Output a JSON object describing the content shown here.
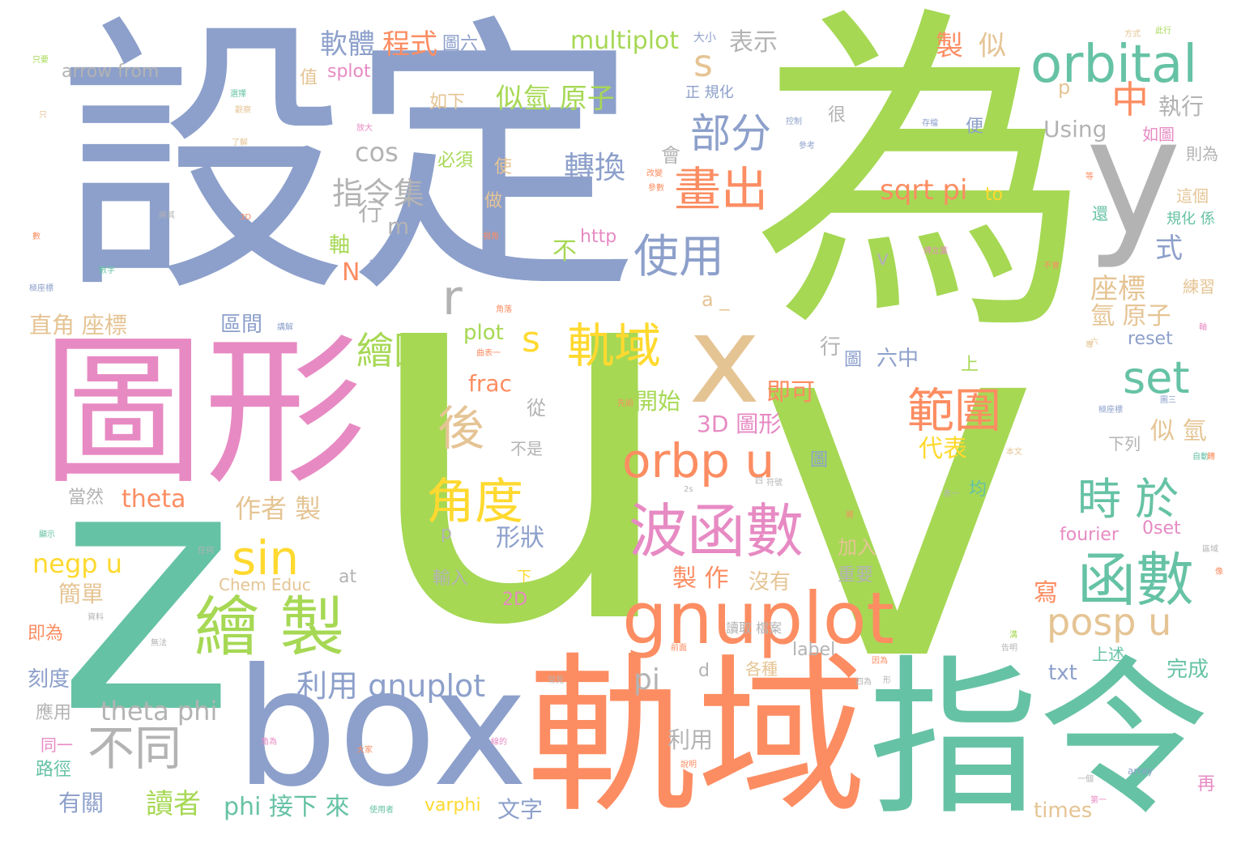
{
  "palette": {
    "green": "#a6d854",
    "blue": "#8da0cb",
    "pink": "#e78ac3",
    "teal": "#66c2a5",
    "orange": "#fc8d62",
    "yellow": "#ffd92f",
    "tan": "#e5c494",
    "gray": "#b3b3b3"
  },
  "words": {
    "w_wei": "為",
    "w_u": "u",
    "w_v": "v",
    "w_z": "z",
    "w_sheding": "設定",
    "w_tuxing": "圖形",
    "w_box": "box",
    "w_guiyu_big": "軌域",
    "w_zhiling": "指令",
    "w_x": "x",
    "w_y": "y",
    "w_orbital": "orbital",
    "w_gnuplot_big": "gnuplot",
    "w_bohanshu": "波函數",
    "w_hanshu": "函數",
    "w_huizhi": "繪 製",
    "w_sin": "sin",
    "w_orbp": "orbp u",
    "w_jiaodu": "角度",
    "w_posp": "posp u",
    "w_shiyu": "時 於",
    "w_fanwei": "範圍",
    "w_set": "set",
    "w_huachu": "畫出",
    "w_shiyong": "使用",
    "w_bufen": "部分",
    "w_guiyu_mid": "軌域",
    "w_huitu": "繪圖",
    "w_s1": "s",
    "w_s2": "s",
    "w_hou": "後",
    "w_butong": "不同",
    "w_zhong": "中",
    "w_r": "r",
    "w_liyong_gnu": "利用 gnuplot",
    "w_thetaphi": "theta phi",
    "w_zhilingji": "指令集",
    "w_zhuanhuan": "轉換",
    "w_siqi": "似氫 原子",
    "w_ruanti": "軟體",
    "w_chengshi": "程式",
    "w_multiplot": "multiplot",
    "w_biaoshi": "表示",
    "w_zhi": "製",
    "w_si": "似",
    "w_tuliu": "圖六",
    "w_arrowfrom": "arrow from",
    "w_splot": "splot",
    "w_zhi2": "值",
    "w_ruxia": "如下",
    "w_cos": "cos",
    "w_zhixing": "執行",
    "w_using": "Using",
    "w_sqrtpi": "sqrt pi",
    "w_to": "to",
    "w_zuobiao": "座標",
    "w_qiyuanzi": "氫 原子",
    "w_plot": "plot",
    "w_frac": "frac",
    "w_theta": "theta",
    "w_negp": "negp u",
    "w_zuozhe": "作者 製",
    "w_3dtuxing": "3D 圖形",
    "w_kaishi": "開始",
    "w_jike": "即可",
    "w_daibiao": "代表",
    "w_siqi2": "似 氫",
    "w_xingzhuang": "形狀",
    "w_zhizuo": "製 作",
    "w_meiyou": "沒有",
    "w_xie": "寫",
    "w_duzhe": "讀者",
    "w_youguan": "有關",
    "w_phijiexia": "phi 接下 來",
    "w_varphi": "varphi",
    "w_wenzi": "文字",
    "w_times": "times",
    "w_zaici": "再",
    "w_wancheng": "完成",
    "w_txt": "txt",
    "w_pi": "pi",
    "w_d": "d",
    "w_liyong2": "利用",
    "w_fourier": "fourier",
    "w_0set": "0set",
    "w_2d": "2D",
    "w_label": "label",
    "w_at": "at",
    "w_cheme": "Chem Educ",
    "w_jiandan": "簡單",
    "w_jiwei": "即為",
    "w_kedu": "刻度",
    "w_yingyong": "應用",
    "w_tongyi": "同一",
    "w_lujing": "路徑",
    "w_dangran": "當然",
    "w_zhijiao": "直角 座標",
    "w_qujian": "區間",
    "w_http": "http",
    "w_buzhi": "不",
    "w_shi": "式",
    "w_n": "N",
    "w_m": "m",
    "w_hang": "行",
    "w_zhou": "軸",
    "w_v2": "v",
    "w_a": "a _",
    "w_reset": "reset",
    "w_liuzhong": "六中",
    "w_tu": "圖",
    "w_hang2": "行",
    "w_shang": "上",
    "w_jun": "均",
    "w_xialie": "下列",
    "w_congtu": "從",
    "w_bushi": "不是",
    "w_shurun": "輸入",
    "w_jiaru": "加入",
    "w_zhongyao": "重要",
    "w_gezhong": "各種",
    "w_shangshu": "上述",
    "w_bixu": "必須",
    "w_shi2": "使",
    "w_zuo": "做",
    "w_bian": "便",
    "w_hui": "會",
    "w_hen": "很",
    "w_zheng": "正 規化",
    "w_daxiao": "大小",
    "w_ruguo": "如圖",
    "w_zewei": "則為",
    "w_zhege": "這個",
    "w_guihua": "規化 係",
    "w_hai": "還",
    "w_lianxi": "練習",
    "w_jixiaotu": "極座標",
    "w_p": "p",
    "w_p2": "p",
    "w_xia": "下",
    "w_tu2": "圖",
    "w_tinyfangshi": "方式",
    "w_tinycihang": "此行",
    "w_tinyzhiyao": "只要",
    "w_tinyzhi": "只",
    "w_tinyxuanze": "選擇",
    "w_tinyguancha": "觀察",
    "w_tinyfangda": "放大",
    "w_tinyliaojie": "了解",
    "w_tinyjiangqi": "將其",
    "w_tiny3d": "3D",
    "w_tinyshu": "數",
    "w_tinyshuzi": "數字",
    "w_tinyjizuobiao": "極座標",
    "w_tinydengyu": "等於",
    "w_tinyshiyongzhe": "使用者",
    "w_tinyxianshi": "顯示",
    "w_tinyrenhe": "任何",
    "w_tinyziliao": "資料",
    "w_tinywufa": "無法",
    "w_tinyjiangjie": "講解",
    "w_tinyshijiao": "視角",
    "w_tinykongzhi": "控制",
    "w_tinycankao": "參考",
    "w_tinygaibian": "改變",
    "w_tinycanshu": "參數",
    "w_tinychucun": "存檔",
    "w_tinyfuliye": "傅立葉",
    "w_tinybuhui": "不會",
    "w_tinyquxian": "曲表一",
    "w_tinyjiaoluo": "角落",
    "w_tinyjiaowei": "角為",
    "w_tinydajia": "大家",
    "w_tinyxiande": "線的",
    "w_tinyxianqian": "先前",
    "w_tinysiji": "四",
    "w_tinyqianmian": "前面",
    "w_tinyduqu": "讀取 檔案",
    "w_tinychangjian": "常見",
    "w_tinyshuoming": "說明",
    "w_tinydiyi": "第一",
    "w_tinyyige": "一個",
    "w_tinyarray": "array",
    "w_tinybiaoyi": "表一",
    "w_tinyyinwei": "因為",
    "w_tinyxing": "形",
    "w_tinyjiang": "將",
    "w_tinybenwen": "本文",
    "w_tinyzidong": "自動",
    "w_tinytusan": "圖三",
    "w_tinyjizuo2": "極座標",
    "w_tinyliu": "六",
    "w_tinyzhou": "軸",
    "w_tiny2s": "2s",
    "w_tinyfuhao": "符號",
    "w_tinywu": "溝",
    "w_tinygaoming": "告明",
    "w_tinyquyu": "區域",
    "w_tinyxiang": "像",
    "w_tinyzhao": "轉",
    "w_tinydeng": "等",
    "w_tinyzhuan": "專",
    "w_tinysiwei": "四為"
  }
}
